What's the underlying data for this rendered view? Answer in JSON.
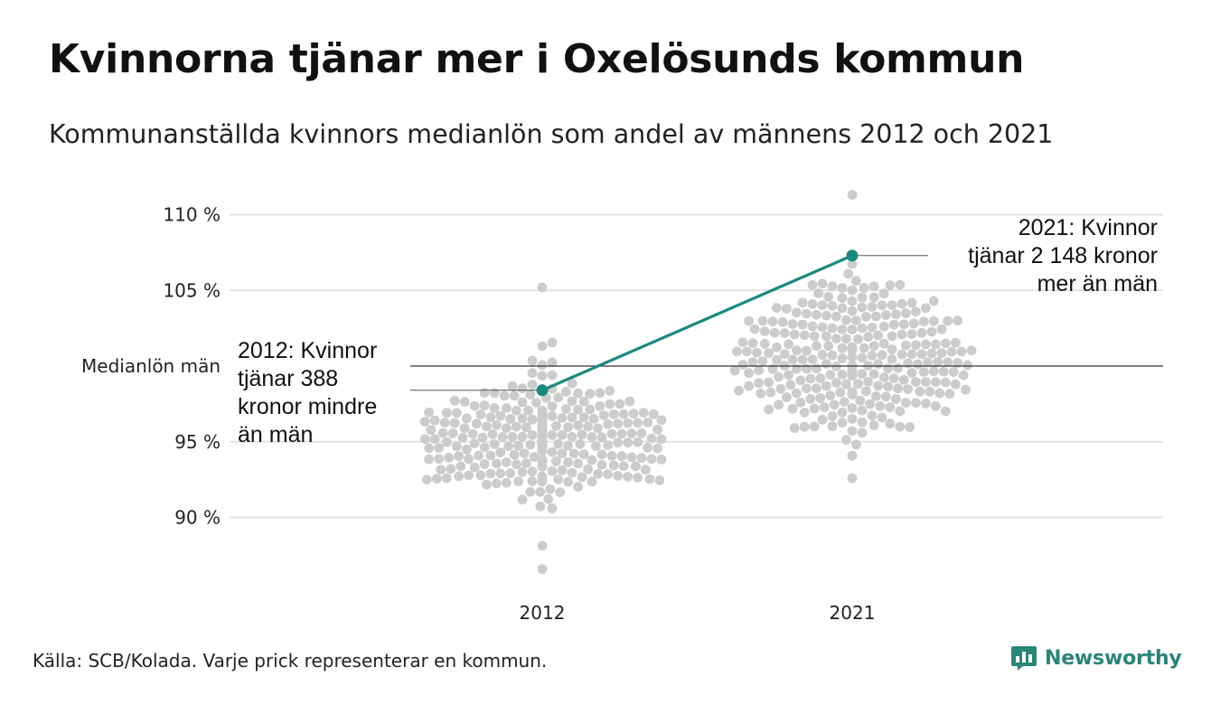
{
  "title": "Kvinnorna tjänar mer i Oxelösunds kommun",
  "subtitle": "Kommunanställda kvinnors medianlön som andel av männens 2012 och 2021",
  "source": "Källa: SCB/Kolada. Varje prick representerar en kommun.",
  "brand": {
    "name": "Newsworthy",
    "logo_icon": "bar-chart-speech-bubble-icon"
  },
  "colors": {
    "dots": "#cccccc",
    "highlight": "#1a8a7e",
    "gridline": "#e3e3e3",
    "reference": "#333333",
    "brand": "#2a8577"
  },
  "chart_data": {
    "type": "scatter",
    "subtype": "beeswarm",
    "categories": [
      "2012",
      "2021"
    ],
    "y_ticks": [
      {
        "value": 90,
        "label": "90 %"
      },
      {
        "value": 95,
        "label": "95 %"
      },
      {
        "value": 105,
        "label": "105 %"
      },
      {
        "value": 110,
        "label": "110 %"
      }
    ],
    "ylim": [
      86.5,
      112
    ],
    "reference_line": {
      "value": 100,
      "label": "Medianlön män"
    },
    "swarm": [
      {
        "category": "2012",
        "median": 95.4,
        "sd": 2.0,
        "count": 290,
        "min": 86.6,
        "max": 105.2
      },
      {
        "category": "2021",
        "median": 100.6,
        "sd": 2.4,
        "count": 290,
        "min": 92.6,
        "max": 111.3
      }
    ],
    "highlight": {
      "name": "Oxelösund",
      "points": [
        {
          "x": "2012",
          "y": 98.4
        },
        {
          "x": "2021",
          "y": 107.3
        }
      ]
    },
    "annotations": [
      {
        "x": "2012",
        "lines": [
          "2012: Kvinnor",
          "tjänar 388",
          "kronor mindre",
          "än män"
        ]
      },
      {
        "x": "2021",
        "lines": [
          "2021: Kvinnor",
          "tjänar 2 148 kronor",
          "mer än män"
        ]
      }
    ]
  }
}
